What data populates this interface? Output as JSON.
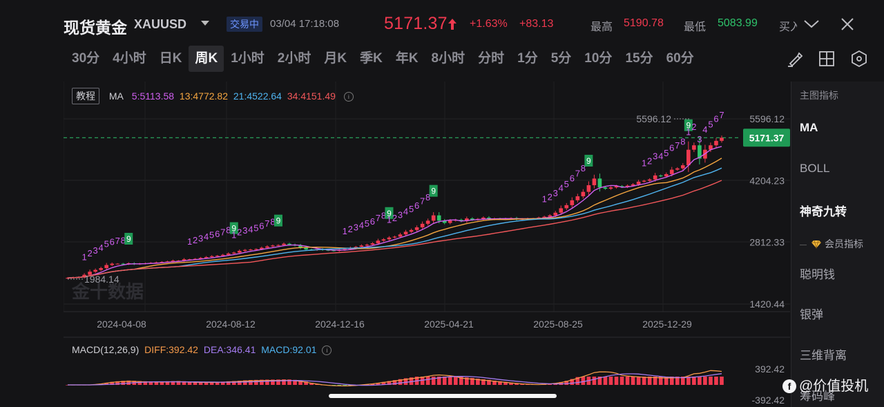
{
  "header": {
    "title": "现货黄金",
    "symbol": "XAUUSD",
    "trade_status": "交易中",
    "datetime": "03/04 17:18:08",
    "price": "5171.37",
    "change_pct": "+1.63%",
    "change_abs": "+83.13",
    "high_label": "最高",
    "high_value": "5190.78",
    "low_label": "最低",
    "low_value": "5083.99",
    "buy_label": "买入",
    "icons": [
      "caret-down-icon",
      "price-up-arrow-icon",
      "chevron-down-icon",
      "close-icon"
    ]
  },
  "tabs": [
    {
      "label": "30分"
    },
    {
      "label": "4小时"
    },
    {
      "label": "日K"
    },
    {
      "label": "周K",
      "active": true
    },
    {
      "label": "1小时"
    },
    {
      "label": "2小时"
    },
    {
      "label": "月K"
    },
    {
      "label": "季K"
    },
    {
      "label": "年K"
    },
    {
      "label": "8小时"
    },
    {
      "label": "分时"
    },
    {
      "label": "1分"
    },
    {
      "label": "5分"
    },
    {
      "label": "10分"
    },
    {
      "label": "15分"
    },
    {
      "label": "60分"
    }
  ],
  "tools": [
    "draw-pen-icon",
    "layout-grid-icon",
    "settings-hexagon-icon"
  ],
  "legend": {
    "tutorial": "教程",
    "ma_label": "MA",
    "ma5": "5:5113.58",
    "ma13": "13:4772.82",
    "ma21": "21:4522.64",
    "ma34": "34:4151.49"
  },
  "macd_legend": {
    "label": "MACD(12,26,9)",
    "diff": "DIFF:392.42",
    "dea": "DEA:346.41",
    "macd": "MACD:92.01"
  },
  "watermark_text": "金十数据",
  "sidebar": {
    "header": "主图指标",
    "items": [
      "MA",
      "BOLL",
      "神奇九转"
    ],
    "vip": "会员指标",
    "vip_items": [
      "聪明钱",
      "银弹",
      "三维背离",
      "筹码峰"
    ]
  },
  "brand": "@价值投机",
  "colors": {
    "up": "#f0394f",
    "down": "#2ec36b",
    "ma5": "#d05ff0",
    "ma13": "#f5a640",
    "ma21": "#4fb4f0",
    "ma34": "#f2575a",
    "diff": "#f59a4a",
    "dea": "#a47cf0"
  },
  "chart_data": {
    "type": "candlestick",
    "title": "现货黄金 XAUUSD 周K",
    "x_tick_labels": [
      "2024-04-08",
      "2024-08-12",
      "2024-12-16",
      "2025-04-21",
      "2025-08-25",
      "2025-12-29"
    ],
    "y_tick_labels": [
      "5596.12",
      "4204.23",
      "2812.33",
      "1420.44"
    ],
    "ylim": [
      1420.44,
      5596.12
    ],
    "last_price": 5171.37,
    "period_high": 5596.12,
    "period_low": 1984.14,
    "nine_turn_marker": "9",
    "moving_averages": [
      {
        "name": "MA5",
        "value": 5113.58
      },
      {
        "name": "MA13",
        "value": 4772.82
      },
      {
        "name": "MA21",
        "value": 4522.64
      },
      {
        "name": "MA34",
        "value": 4151.49
      }
    ],
    "weekly_close_approx": [
      2010,
      2020,
      2030,
      2080,
      2150,
      2190,
      2230,
      2300,
      2330,
      2330,
      2320,
      2340,
      2320,
      2330,
      2340,
      2350,
      2360,
      2370,
      2380,
      2400,
      2400,
      2430,
      2430,
      2440,
      2460,
      2480,
      2500,
      2510,
      2530,
      2560,
      2580,
      2620,
      2640,
      2650,
      2660,
      2690,
      2720,
      2740,
      2750,
      2780,
      2760,
      2740,
      2690,
      2650,
      2640,
      2660,
      2640,
      2630,
      2620,
      2640,
      2660,
      2690,
      2710,
      2740,
      2760,
      2790,
      2850,
      2880,
      2920,
      2940,
      2990,
      3050,
      3090,
      3150,
      3230,
      3300,
      3420,
      3300,
      3250,
      3300,
      3320,
      3290,
      3350,
      3320,
      3340,
      3370,
      3330,
      3350,
      3340,
      3350,
      3360,
      3330,
      3340,
      3350,
      3350,
      3370,
      3390,
      3420,
      3480,
      3580,
      3650,
      3760,
      3850,
      3950,
      4100,
      4250,
      4050,
      4020,
      4050,
      4080,
      4060,
      4090,
      4120,
      4180,
      4200,
      4230,
      4320,
      4300,
      4350,
      4450,
      4480,
      4550,
      4900,
      5000,
      4700,
      4900,
      5000,
      5100,
      5171
    ]
  }
}
